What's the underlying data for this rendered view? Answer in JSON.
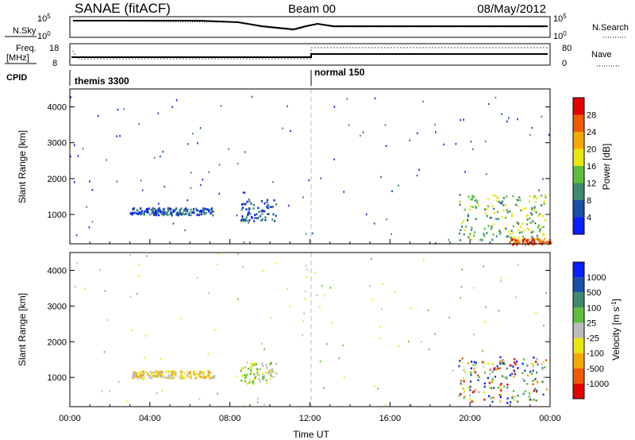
{
  "header": {
    "title": "SANAE (fitACF)",
    "beam": "Beam 00",
    "date": "08/May/2012"
  },
  "nsky_panel": {
    "left_label": "N.Sky",
    "right_label": "N.Search",
    "left_ticks": [
      "10^5",
      "10^0"
    ],
    "right_ticks": [
      "10^5",
      "10^0"
    ]
  },
  "freq_panel": {
    "left_label_1": "Freq.",
    "left_label_2": "[MHz]",
    "left_ticks": [
      "18",
      "8"
    ],
    "right_label": "Nave",
    "right_ticks": [
      "80",
      "0"
    ]
  },
  "cpid": {
    "label": "CPID",
    "modes": [
      "themis 3300",
      "normal 150"
    ],
    "mode_change_time": "12:00"
  },
  "chart_data": [
    {
      "type": "heatmap",
      "title": "Power",
      "xlabel": "",
      "ylabel": "Slant Range [km]",
      "x_ticks": [
        "00:00",
        "04:00",
        "08:00",
        "12:00",
        "16:00",
        "20:00",
        "00:00"
      ],
      "xlim_hours": [
        0,
        24
      ],
      "y_ticks": [
        "1000",
        "2000",
        "3000",
        "4000"
      ],
      "ylim_km": [
        180,
        4500
      ],
      "colorbar_label": "Power [dB]",
      "colorbar_ticks": [
        "4",
        "8",
        "12",
        "16",
        "20",
        "24",
        "28"
      ],
      "colors": [
        "#0a1fff",
        "#1a4fa8",
        "#3e8a6e",
        "#5fbf3c",
        "#e8e80f",
        "#f5a800",
        "#f05a00",
        "#e50000"
      ],
      "data_regions": [
        {
          "t": [
            3.0,
            7.2
          ],
          "r": [
            1000,
            1200
          ],
          "level": 1
        },
        {
          "t": [
            8.5,
            10.3
          ],
          "r": [
            800,
            1450
          ],
          "level": 1
        },
        {
          "t": [
            19.4,
            23.8
          ],
          "r": [
            300,
            1600
          ],
          "level": 3
        },
        {
          "t": [
            22.0,
            24.0
          ],
          "r": [
            180,
            350
          ],
          "level": 6
        }
      ]
    },
    {
      "type": "heatmap",
      "title": "Velocity",
      "xlabel": "Time UT",
      "ylabel": "Slant Range [km]",
      "x_ticks": [
        "00:00",
        "04:00",
        "08:00",
        "12:00",
        "16:00",
        "20:00",
        "00:00"
      ],
      "xlim_hours": [
        0,
        24
      ],
      "y_ticks": [
        "1000",
        "2000",
        "3000",
        "4000"
      ],
      "ylim_km": [
        180,
        4500
      ],
      "colorbar_label": "Velocity [m s",
      "colorbar_label_sup": "-1",
      "colorbar_label_end": "]",
      "colorbar_ticks": [
        "1000",
        "500",
        "100",
        "25",
        "-25",
        "-100",
        "-500",
        "-1000"
      ],
      "colors": [
        "#0a1fff",
        "#1a4fa8",
        "#3e8a6e",
        "#5fbf3c",
        "#bbbbbb",
        "#e8e80f",
        "#f5a800",
        "#f05a00",
        "#e50000"
      ],
      "data_regions": [
        {
          "t": [
            3.0,
            7.2
          ],
          "r": [
            1000,
            1200
          ],
          "level": "-100"
        },
        {
          "t": [
            8.5,
            10.3
          ],
          "r": [
            800,
            1450
          ],
          "level": "-25"
        },
        {
          "t": [
            19.4,
            23.8
          ],
          "r": [
            300,
            1600
          ],
          "level": "mixed"
        }
      ]
    }
  ]
}
